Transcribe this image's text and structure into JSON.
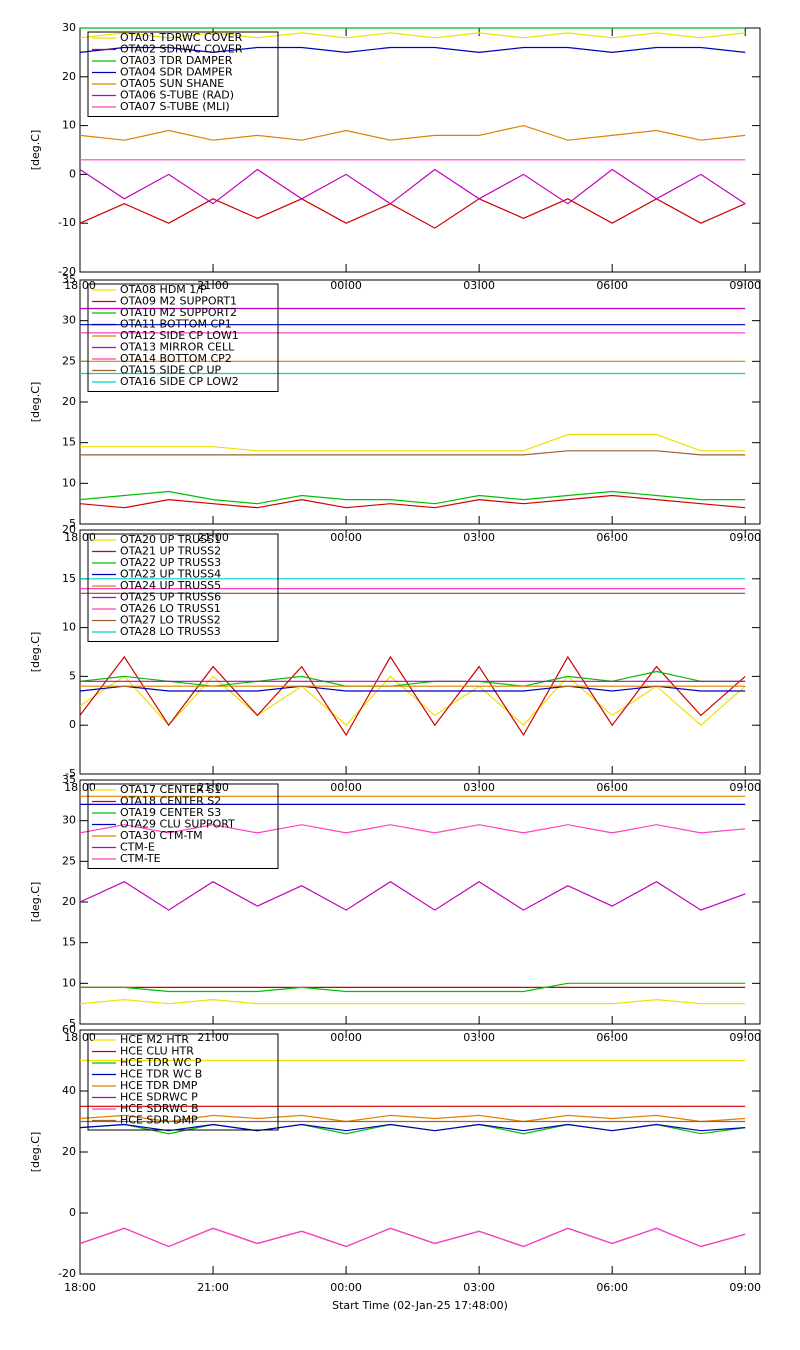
{
  "chart_data": [
    {
      "type": "line",
      "y_label": "[deg.C]",
      "xlim": [
        "18:00",
        "09:20"
      ],
      "xticks": [
        "18:00",
        "21:00",
        "00:00",
        "03:00",
        "06:00",
        "09:00"
      ],
      "ylim": [
        -20,
        30
      ],
      "yticks": [
        -20,
        -10,
        0,
        10,
        20,
        30
      ],
      "x": [
        "18:00",
        "19:00",
        "20:00",
        "21:00",
        "22:00",
        "23:00",
        "00:00",
        "01:00",
        "02:00",
        "03:00",
        "04:00",
        "05:00",
        "06:00",
        "07:00",
        "08:00",
        "09:00"
      ],
      "series": [
        {
          "name": "OTA01 TDRWC COVER",
          "color": "#f0e000",
          "values": [
            28,
            29,
            28,
            29,
            28,
            29,
            28,
            29,
            28,
            29,
            28,
            29,
            28,
            29,
            28,
            29
          ]
        },
        {
          "name": "OTA02 SDRWC COVER",
          "color": "#d00000",
          "values": [
            -10,
            -6,
            -10,
            -5,
            -9,
            -5,
            -10,
            -6,
            -11,
            -5,
            -9,
            -5,
            -10,
            -5,
            -10,
            -6
          ]
        },
        {
          "name": "OTA03 TDR DAMPER",
          "color": "#00c000",
          "values": [
            30,
            30,
            30,
            30,
            30,
            30,
            30,
            30,
            30,
            30,
            30,
            30,
            30,
            30,
            30,
            30
          ]
        },
        {
          "name": "OTA04 SDR DAMPER",
          "color": "#0000c0",
          "values": [
            25,
            26,
            26,
            25,
            26,
            26,
            25,
            26,
            26,
            25,
            26,
            26,
            25,
            26,
            26,
            25
          ]
        },
        {
          "name": "OTA05 SUN SHANE",
          "color": "#e08000",
          "values": [
            8,
            7,
            9,
            7,
            8,
            7,
            9,
            7,
            8,
            8,
            10,
            7,
            8,
            9,
            7,
            8
          ]
        },
        {
          "name": "OTA06 S-TUBE (RAD)",
          "color": "#c000c0",
          "values": [
            1,
            -5,
            0,
            -6,
            1,
            -5,
            0,
            -6,
            1,
            -5,
            0,
            -6,
            1,
            -5,
            0,
            -6
          ]
        },
        {
          "name": "OTA07 S-TUBE (MLI)",
          "color": "#ff40c0",
          "values": [
            3,
            3,
            3,
            3,
            3,
            3,
            3,
            3,
            3,
            3,
            3,
            3,
            3,
            3,
            3,
            3
          ]
        }
      ]
    },
    {
      "type": "line",
      "y_label": "[deg.C]",
      "xlim": [
        "18:00",
        "09:20"
      ],
      "xticks": [
        "18:00",
        "21:00",
        "00:00",
        "03:00",
        "06:00",
        "09:00"
      ],
      "ylim": [
        5,
        35
      ],
      "yticks": [
        5,
        10,
        15,
        20,
        25,
        30,
        35
      ],
      "x": [
        "18:00",
        "19:00",
        "20:00",
        "21:00",
        "22:00",
        "23:00",
        "00:00",
        "01:00",
        "02:00",
        "03:00",
        "04:00",
        "05:00",
        "06:00",
        "07:00",
        "08:00",
        "09:00"
      ],
      "series": [
        {
          "name": "OTA08 HDM 1/P",
          "color": "#f0e000",
          "values": [
            14.5,
            14.5,
            14.5,
            14.5,
            14,
            14,
            14,
            14,
            14,
            14,
            14,
            16,
            16,
            16,
            14,
            14
          ]
        },
        {
          "name": "OTA09 M2 SUPPORT1",
          "color": "#d00000",
          "values": [
            7.5,
            7,
            8,
            7.5,
            7,
            8,
            7,
            7.5,
            7,
            8,
            7.5,
            8,
            8.5,
            8,
            7.5,
            7
          ]
        },
        {
          "name": "OTA10 M2 SUPPORT2",
          "color": "#00c000",
          "values": [
            8,
            8.5,
            9,
            8,
            7.5,
            8.5,
            8,
            8,
            7.5,
            8.5,
            8,
            8.5,
            9,
            8.5,
            8,
            8
          ]
        },
        {
          "name": "OTA11 BOTTOM CP1",
          "color": "#0000c0",
          "values": [
            29.5,
            29.5,
            29.5,
            29.5,
            29.5,
            29.5,
            29.5,
            29.5,
            29.5,
            29.5,
            29.5,
            29.5,
            29.5,
            29.5,
            29.5,
            29.5
          ]
        },
        {
          "name": "OTA12 SIDE CP LOW1",
          "color": "#e08000",
          "values": [
            25,
            25,
            25,
            25,
            25,
            25,
            25,
            25,
            25,
            25,
            25,
            25,
            25,
            25,
            25,
            25
          ]
        },
        {
          "name": "OTA13 MIRROR CELL",
          "color": "#c000c0",
          "values": [
            31.5,
            31.5,
            31.5,
            31.5,
            31.5,
            31.5,
            31.5,
            31.5,
            31.5,
            31.5,
            31.5,
            31.5,
            31.5,
            31.5,
            31.5,
            31.5
          ]
        },
        {
          "name": "OTA14 BOTTOM CP2",
          "color": "#ff40c0",
          "values": [
            28.5,
            28.5,
            28.5,
            28.5,
            28.5,
            28.5,
            28.5,
            28.5,
            28.5,
            28.5,
            28.5,
            28.5,
            28.5,
            28.5,
            28.5,
            28.5
          ]
        },
        {
          "name": "OTA15 SIDE CP UP",
          "color": "#a06030",
          "values": [
            13.5,
            13.5,
            13.5,
            13.5,
            13.5,
            13.5,
            13.5,
            13.5,
            13.5,
            13.5,
            13.5,
            14,
            14,
            14,
            13.5,
            13.5
          ]
        },
        {
          "name": "OTA16 SIDE CP LOW2",
          "color": "#00d0d0",
          "values": [
            23.5,
            23.5,
            23.5,
            23.5,
            23.5,
            23.5,
            23.5,
            23.5,
            23.5,
            23.5,
            23.5,
            23.5,
            23.5,
            23.5,
            23.5,
            23.5
          ]
        }
      ]
    },
    {
      "type": "line",
      "y_label": "[deg.C]",
      "xlim": [
        "18:00",
        "09:20"
      ],
      "xticks": [
        "18:00",
        "21:00",
        "00:00",
        "03:00",
        "06:00",
        "09:00"
      ],
      "ylim": [
        -5,
        20
      ],
      "yticks": [
        -5,
        0,
        5,
        10,
        15,
        20
      ],
      "x": [
        "18:00",
        "19:00",
        "20:00",
        "21:00",
        "22:00",
        "23:00",
        "00:00",
        "01:00",
        "02:00",
        "03:00",
        "04:00",
        "05:00",
        "06:00",
        "07:00",
        "08:00",
        "09:00"
      ],
      "series": [
        {
          "name": "OTA20 UP TRUSS1",
          "color": "#f0e000",
          "values": [
            2,
            5,
            0,
            5,
            1,
            4,
            0,
            5,
            1,
            4,
            0,
            5,
            1,
            4,
            0,
            4
          ]
        },
        {
          "name": "OTA21 UP TRUSS2",
          "color": "#d00000",
          "values": [
            1,
            7,
            0,
            6,
            1,
            6,
            -1,
            7,
            0,
            6,
            -1,
            7,
            0,
            6,
            1,
            5
          ]
        },
        {
          "name": "OTA22 UP TRUSS3",
          "color": "#00c000",
          "values": [
            4.5,
            5,
            4.5,
            4,
            4.5,
            5,
            4,
            4,
            4.5,
            4.5,
            4,
            5,
            4.5,
            5.5,
            4.5,
            4.5
          ]
        },
        {
          "name": "OTA23 UP TRUSS4",
          "color": "#0000c0",
          "values": [
            3.5,
            4,
            3.5,
            3.5,
            3.5,
            4,
            3.5,
            3.5,
            3.5,
            3.5,
            3.5,
            4,
            3.5,
            4,
            3.5,
            3.5
          ]
        },
        {
          "name": "OTA24 UP TRUSS5",
          "color": "#e08000",
          "values": [
            4,
            4,
            4,
            4,
            4,
            4,
            4,
            4,
            4,
            4,
            4,
            4,
            4,
            4,
            4,
            4
          ]
        },
        {
          "name": "OTA25 UP TRUSS6",
          "color": "#c000c0",
          "values": [
            4.5,
            4.5,
            4.5,
            4.5,
            4.5,
            4.5,
            4.5,
            4.5,
            4.5,
            4.5,
            4.5,
            4.5,
            4.5,
            4.5,
            4.5,
            4.5
          ]
        },
        {
          "name": "OTA26 LO TRUSS1",
          "color": "#ff40c0",
          "values": [
            14,
            14,
            14,
            14,
            14,
            14,
            14,
            14,
            14,
            14,
            14,
            14,
            14,
            14,
            14,
            14
          ]
        },
        {
          "name": "OTA27 LO TRUSS2",
          "color": "#a06030",
          "values": [
            13.5,
            13.5,
            13.5,
            13.5,
            13.5,
            13.5,
            13.5,
            13.5,
            13.5,
            13.5,
            13.5,
            13.5,
            13.5,
            13.5,
            13.5,
            13.5
          ]
        },
        {
          "name": "OTA28 LO TRUSS3",
          "color": "#00d0d0",
          "values": [
            15,
            15,
            15,
            15,
            15,
            15,
            15,
            15,
            15,
            15,
            15,
            15,
            15,
            15,
            15,
            15
          ]
        }
      ]
    },
    {
      "type": "line",
      "y_label": "[deg.C]",
      "xlim": [
        "18:00",
        "09:20"
      ],
      "xticks": [
        "18:00",
        "21:00",
        "00:00",
        "03:00",
        "06:00",
        "09:00"
      ],
      "ylim": [
        5,
        35
      ],
      "yticks": [
        5,
        10,
        15,
        20,
        25,
        30,
        35
      ],
      "x": [
        "18:00",
        "19:00",
        "20:00",
        "21:00",
        "22:00",
        "23:00",
        "00:00",
        "01:00",
        "02:00",
        "03:00",
        "04:00",
        "05:00",
        "06:00",
        "07:00",
        "08:00",
        "09:00"
      ],
      "series": [
        {
          "name": "OTA17 CENTER S1",
          "color": "#f0e000",
          "values": [
            7.5,
            8,
            7.5,
            8,
            7.5,
            7.5,
            7.5,
            7.5,
            7.5,
            7.5,
            7.5,
            7.5,
            7.5,
            8,
            7.5,
            7.5
          ]
        },
        {
          "name": "OTA18 CENTER S2",
          "color": "#d00000",
          "values": [
            9.5,
            9.5,
            9.5,
            9.5,
            9.5,
            9.5,
            9.5,
            9.5,
            9.5,
            9.5,
            9.5,
            9.5,
            9.5,
            9.5,
            9.5,
            9.5
          ]
        },
        {
          "name": "OTA19 CENTER S3",
          "color": "#00c000",
          "values": [
            9.5,
            9.5,
            9,
            9,
            9,
            9.5,
            9,
            9,
            9,
            9,
            9,
            10,
            10,
            10,
            10,
            10
          ]
        },
        {
          "name": "OTA29 CLU SUPPORT",
          "color": "#0000c0",
          "values": [
            32,
            32,
            32,
            32,
            32,
            32,
            32,
            32,
            32,
            32,
            32,
            32,
            32,
            32,
            32,
            32
          ]
        },
        {
          "name": "OTA30 CTM-TM",
          "color": "#e08000",
          "values": [
            33,
            33,
            33,
            33,
            33,
            33,
            33,
            33,
            33,
            33,
            33,
            33,
            33,
            33,
            33,
            33
          ]
        },
        {
          "name": "CTM-E",
          "color": "#c000c0",
          "values": [
            20,
            22.5,
            19,
            22.5,
            19.5,
            22,
            19,
            22.5,
            19,
            22.5,
            19,
            22,
            19.5,
            22.5,
            19,
            21
          ]
        },
        {
          "name": "CTM-TE",
          "color": "#ff40c0",
          "values": [
            28.5,
            29.5,
            28.5,
            29.5,
            28.5,
            29.5,
            28.5,
            29.5,
            28.5,
            29.5,
            28.5,
            29.5,
            28.5,
            29.5,
            28.5,
            29
          ]
        }
      ]
    },
    {
      "type": "line",
      "y_label": "[deg.C]",
      "x_label": "Start Time (02-Jan-25 17:48:00)",
      "xlim": [
        "18:00",
        "09:20"
      ],
      "xticks": [
        "18:00",
        "21:00",
        "00:00",
        "03:00",
        "06:00",
        "09:00"
      ],
      "ylim": [
        -20,
        60
      ],
      "yticks": [
        -20,
        0,
        20,
        40,
        60
      ],
      "x": [
        "18:00",
        "19:00",
        "20:00",
        "21:00",
        "22:00",
        "23:00",
        "00:00",
        "01:00",
        "02:00",
        "03:00",
        "04:00",
        "05:00",
        "06:00",
        "07:00",
        "08:00",
        "09:00"
      ],
      "series": [
        {
          "name": "HCE M2 HTR",
          "color": "#f0e000",
          "values": [
            50,
            50,
            50,
            50,
            50,
            50,
            50,
            50,
            50,
            50,
            50,
            50,
            50,
            50,
            50,
            50
          ]
        },
        {
          "name": "HCE CLU HTR",
          "color": "#d00000",
          "values": [
            35,
            35,
            35,
            35,
            35,
            35,
            35,
            35,
            35,
            35,
            35,
            35,
            35,
            35,
            35,
            35
          ]
        },
        {
          "name": "HCE TDR WC P",
          "color": "#00c000",
          "values": [
            28,
            29,
            26,
            29,
            27,
            29,
            26,
            29,
            27,
            29,
            26,
            29,
            27,
            29,
            26,
            28
          ]
        },
        {
          "name": "HCE TDR WC B",
          "color": "#0000c0",
          "values": [
            28,
            29,
            27,
            29,
            27,
            29,
            27,
            29,
            27,
            29,
            27,
            29,
            27,
            29,
            27,
            28
          ]
        },
        {
          "name": "HCE TDR DMP",
          "color": "#e08000",
          "values": [
            31,
            32,
            30,
            32,
            31,
            32,
            30,
            32,
            31,
            32,
            30,
            32,
            31,
            32,
            30,
            31
          ]
        },
        {
          "name": "HCE SDRWC P",
          "color": "#c000c0",
          "values": [
            -10,
            -5,
            -11,
            -5,
            -10,
            -6,
            -11,
            -5,
            -10,
            -6,
            -11,
            -5,
            -10,
            -5,
            -11,
            -7
          ]
        },
        {
          "name": "HCE SDRWC B",
          "color": "#ff40c0",
          "values": [
            -10,
            -5,
            -11,
            -5,
            -10,
            -6,
            -11,
            -5,
            -10,
            -6,
            -11,
            -5,
            -10,
            -5,
            -11,
            -7
          ]
        },
        {
          "name": "HCE SDR DMP",
          "color": "#a06030",
          "values": [
            30,
            30,
            30,
            30,
            30,
            30,
            30,
            30,
            30,
            30,
            30,
            30,
            30,
            30,
            30,
            30
          ]
        }
      ]
    }
  ]
}
